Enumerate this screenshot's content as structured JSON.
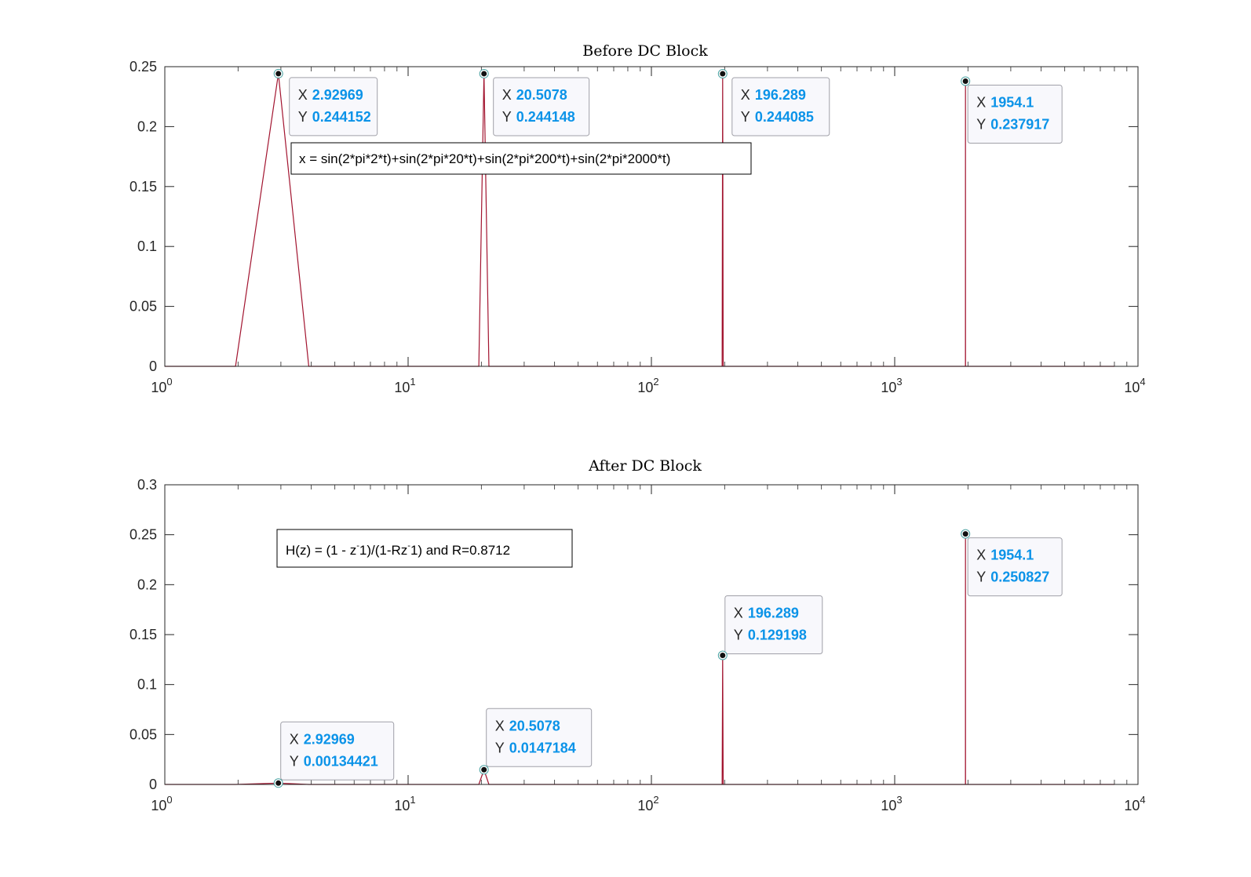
{
  "chart_data": [
    {
      "type": "line",
      "title": "Before DC Block",
      "xscale": "log",
      "xlim": [
        1,
        10000
      ],
      "ylim": [
        0,
        0.25
      ],
      "yticks": [
        "0",
        "0.05",
        "0.1",
        "0.15",
        "0.2",
        "0.25"
      ],
      "xtick_base": "10",
      "xtick_exponents": [
        "0",
        "1",
        "2",
        "3",
        "4"
      ],
      "line_color": "#a2142f",
      "series": [
        {
          "x": [
            1,
            1.953,
            2.92969,
            3.906,
            19.531,
            20.5078,
            21.484,
            195.313,
            196.289,
            197.266,
            1953.13,
            1954.1,
            1955.08,
            8000
          ],
          "y": [
            0,
            0,
            0.244152,
            0,
            0,
            0.244148,
            0,
            0,
            0.244085,
            0,
            0,
            0.237917,
            0,
            0
          ]
        }
      ],
      "datatips": [
        {
          "x": 2.92969,
          "y": 0.244152,
          "x_label": "X",
          "y_label": "Y",
          "x_text": "2.92969",
          "y_text": "0.244152"
        },
        {
          "x": 20.5078,
          "y": 0.244148,
          "x_label": "X",
          "y_label": "Y",
          "x_text": "20.5078",
          "y_text": "0.244148"
        },
        {
          "x": 196.289,
          "y": 0.244085,
          "x_label": "X",
          "y_label": "Y",
          "x_text": "196.289",
          "y_text": "0.244085"
        },
        {
          "x": 1954.1,
          "y": 0.237917,
          "x_label": "X",
          "y_label": "Y",
          "x_text": "1954.1",
          "y_text": "0.237917"
        }
      ],
      "annotation": {
        "text": "x = sin(2*pi*2*t)+sin(2*pi*20*t)+sin(2*pi*200*t)+sin(2*pi*2000*t)"
      }
    },
    {
      "type": "line",
      "title": "After DC Block",
      "xscale": "log",
      "xlim": [
        1,
        10000
      ],
      "ylim": [
        0,
        0.3
      ],
      "yticks": [
        "0",
        "0.05",
        "0.1",
        "0.15",
        "0.2",
        "0.25",
        "0.3"
      ],
      "xtick_base": "10",
      "xtick_exponents": [
        "0",
        "1",
        "2",
        "3",
        "4"
      ],
      "line_color": "#a2142f",
      "series": [
        {
          "x": [
            1,
            1.953,
            2.92969,
            3.906,
            19.531,
            20.5078,
            21.484,
            195.313,
            196.289,
            197.266,
            1953.13,
            1954.1,
            1955.08,
            8000
          ],
          "y": [
            0,
            0,
            0.00134421,
            0,
            0,
            0.0147184,
            0,
            0,
            0.129198,
            0,
            0,
            0.250827,
            0,
            0
          ]
        }
      ],
      "datatips": [
        {
          "x": 2.92969,
          "y": 0.00134421,
          "x_label": "X",
          "y_label": "Y",
          "x_text": "2.92969",
          "y_text": "0.00134421"
        },
        {
          "x": 20.5078,
          "y": 0.0147184,
          "x_label": "X",
          "y_label": "Y",
          "x_text": "20.5078",
          "y_text": "0.0147184"
        },
        {
          "x": 196.289,
          "y": 0.129198,
          "x_label": "X",
          "y_label": "Y",
          "x_text": "196.289",
          "y_text": "0.129198"
        },
        {
          "x": 1954.1,
          "y": 0.250827,
          "x_label": "X",
          "y_label": "Y",
          "x_text": "1954.1",
          "y_text": "0.250827"
        }
      ],
      "annotation": {
        "parts": [
          "H(z) = (1 - z",
          "-",
          "1)/(1-Rz",
          "-",
          "1) and R=0.8712"
        ]
      }
    }
  ]
}
